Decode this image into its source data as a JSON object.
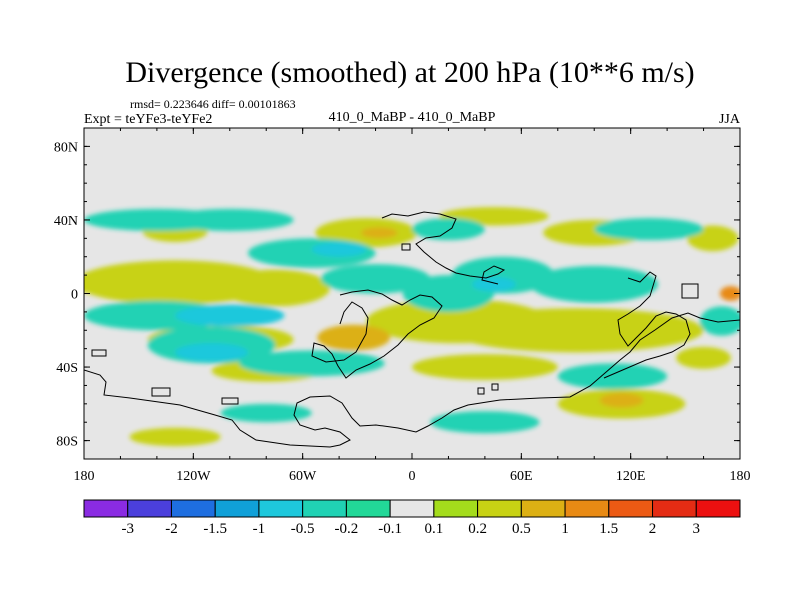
{
  "chart_data": {
    "type": "heatmap",
    "title": "Divergence (smoothed) at 200 hPa (10**6 m/s)",
    "stats": "rmsd= 0.223646 diff= 0.00101863",
    "experiment": "Expt = teYFe3-teYFe2",
    "comparison": "410_0_MaBP - 410_0_MaBP",
    "season": "JJA",
    "projection": "cylindrical equidistant",
    "xlim": [
      -180,
      180
    ],
    "ylim": [
      -90,
      90
    ],
    "x_ticks": [
      {
        "value": -180,
        "label": "180"
      },
      {
        "value": -120,
        "label": "120W"
      },
      {
        "value": -60,
        "label": "60W"
      },
      {
        "value": 0,
        "label": "0"
      },
      {
        "value": 60,
        "label": "60E"
      },
      {
        "value": 120,
        "label": "120E"
      },
      {
        "value": 180,
        "label": "180"
      }
    ],
    "y_ticks": [
      {
        "value": 80,
        "label": "80N"
      },
      {
        "value": 40,
        "label": "40N"
      },
      {
        "value": 0,
        "label": "0"
      },
      {
        "value": -40,
        "label": "40S"
      },
      {
        "value": -80,
        "label": "80S"
      }
    ],
    "colorbar": {
      "labels": [
        "-3",
        "-2",
        "-1.5",
        "-1",
        "-0.5",
        "-0.2",
        "-0.1",
        "0.1",
        "0.2",
        "0.5",
        "1",
        "1.5",
        "2",
        "3"
      ],
      "colors": [
        "#8a2be2",
        "#4b3fdc",
        "#1e6ee0",
        "#10a0d8",
        "#1ec8dc",
        "#20d2b4",
        "#22d898",
        "#e6e6e6",
        "#a4dc1c",
        "#c8d214",
        "#dcb014",
        "#e88a14",
        "#ec5a14",
        "#e42c14",
        "#ec1010"
      ]
    },
    "features": [
      {
        "value": 0.5,
        "lon": -150,
        "lat": 5,
        "rlon": 38,
        "rlat": 7
      },
      {
        "value": 0.2,
        "lon": -130,
        "lat": 6,
        "rlon": 55,
        "rlat": 12
      },
      {
        "value": 0.2,
        "lon": -75,
        "lat": 3,
        "rlon": 30,
        "rlat": 10
      },
      {
        "value": 0.5,
        "lon": 20,
        "lat": -12,
        "rlon": 20,
        "rlat": 6
      },
      {
        "value": 0.2,
        "lon": 25,
        "lat": -15,
        "rlon": 50,
        "rlat": 12
      },
      {
        "value": 0.5,
        "lon": 80,
        "lat": -20,
        "rlon": 50,
        "rlat": 8
      },
      {
        "value": 0.2,
        "lon": 90,
        "lat": -20,
        "rlon": 70,
        "rlat": 12
      },
      {
        "value": 0.2,
        "lon": -105,
        "lat": -25,
        "rlon": 40,
        "rlat": 8
      },
      {
        "value": 0.5,
        "lon": -32,
        "lat": -24,
        "rlon": 20,
        "rlat": 7
      },
      {
        "value": 0.2,
        "lon": 40,
        "lat": -40,
        "rlon": 40,
        "rlat": 7
      },
      {
        "value": 0.2,
        "lon": -80,
        "lat": -42,
        "rlon": 30,
        "rlat": 6
      },
      {
        "value": 0.2,
        "lon": 115,
        "lat": -60,
        "rlon": 35,
        "rlat": 8
      },
      {
        "value": 0.5,
        "lon": 115,
        "lat": -58,
        "rlon": 12,
        "rlat": 4
      },
      {
        "value": 0.2,
        "lon": -130,
        "lat": -78,
        "rlon": 25,
        "rlat": 5
      },
      {
        "value": 0.2,
        "lon": 100,
        "lat": 33,
        "rlon": 28,
        "rlat": 7
      },
      {
        "value": 0.2,
        "lon": -130,
        "lat": 34,
        "rlon": 18,
        "rlat": 6
      },
      {
        "value": 0.2,
        "lon": -25,
        "lat": 33,
        "rlon": 28,
        "rlat": 8
      },
      {
        "value": 0.5,
        "lon": -18,
        "lat": 33,
        "rlon": 10,
        "rlat": 3
      },
      {
        "value": 0.2,
        "lon": 45,
        "lat": 42,
        "rlon": 30,
        "rlat": 5
      },
      {
        "value": 0.2,
        "lon": 165,
        "lat": 30,
        "rlon": 14,
        "rlat": 7
      },
      {
        "value": 0.2,
        "lon": 160,
        "lat": -35,
        "rlon": 15,
        "rlat": 6
      },
      {
        "value": 1,
        "lon": 175,
        "lat": 0,
        "rlon": 6,
        "rlat": 4
      },
      {
        "value": -0.2,
        "lon": -140,
        "lat": -12,
        "rlon": 40,
        "rlat": 8
      },
      {
        "value": -0.5,
        "lon": -100,
        "lat": -12,
        "rlon": 30,
        "rlat": 6
      },
      {
        "value": -0.2,
        "lon": -110,
        "lat": -28,
        "rlon": 35,
        "rlat": 10
      },
      {
        "value": -0.5,
        "lon": -110,
        "lat": -32,
        "rlon": 20,
        "rlat": 5
      },
      {
        "value": -0.2,
        "lon": -55,
        "lat": 22,
        "rlon": 35,
        "rlat": 8
      },
      {
        "value": -0.5,
        "lon": -40,
        "lat": 24,
        "rlon": 15,
        "rlat": 4
      },
      {
        "value": -0.2,
        "lon": -20,
        "lat": 8,
        "rlon": 30,
        "rlat": 8
      },
      {
        "value": -0.2,
        "lon": 20,
        "lat": 0,
        "rlon": 25,
        "rlat": 10
      },
      {
        "value": -0.2,
        "lon": 50,
        "lat": 10,
        "rlon": 28,
        "rlat": 10
      },
      {
        "value": -0.5,
        "lon": 45,
        "lat": 5,
        "rlon": 12,
        "rlat": 4
      },
      {
        "value": -0.2,
        "lon": 100,
        "lat": 5,
        "rlon": 35,
        "rlat": 10
      },
      {
        "value": -0.2,
        "lon": -55,
        "lat": -38,
        "rlon": 40,
        "rlat": 7
      },
      {
        "value": -0.2,
        "lon": 110,
        "lat": -45,
        "rlon": 30,
        "rlat": 7
      },
      {
        "value": -0.2,
        "lon": -140,
        "lat": 40,
        "rlon": 40,
        "rlat": 6
      },
      {
        "value": -0.2,
        "lon": -100,
        "lat": 40,
        "rlon": 35,
        "rlat": 6
      },
      {
        "value": -0.2,
        "lon": 130,
        "lat": 35,
        "rlon": 30,
        "rlat": 6
      },
      {
        "value": -0.2,
        "lon": 20,
        "lat": 35,
        "rlon": 20,
        "rlat": 6
      },
      {
        "value": -0.2,
        "lon": -80,
        "lat": -65,
        "rlon": 25,
        "rlat": 5
      },
      {
        "value": -0.2,
        "lon": 40,
        "lat": -70,
        "rlon": 30,
        "rlat": 6
      },
      {
        "value": -0.2,
        "lon": 170,
        "lat": -15,
        "rlon": 12,
        "rlat": 8
      }
    ]
  }
}
